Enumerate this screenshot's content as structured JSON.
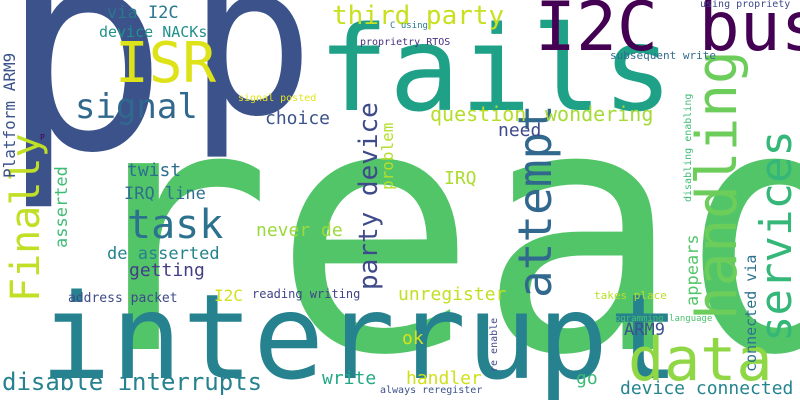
{
  "words": [
    {
      "text": "read",
      "color": "#53c569"
    },
    {
      "text": "interrupt",
      "color": "#26828e"
    },
    {
      "text": "p",
      "color": "#3b528b"
    },
    {
      "text": "p",
      "color": "#3b528b"
    },
    {
      "text": "fails",
      "color": "#1fa187"
    },
    {
      "text": "I2C bus",
      "color": "#440154"
    },
    {
      "text": "ISR",
      "color": "#dde318"
    },
    {
      "text": "data",
      "color": "#8fd744"
    },
    {
      "text": "handling",
      "color": "#6ccd5a"
    },
    {
      "text": "services",
      "color": "#35b779"
    },
    {
      "text": "signal",
      "color": "#31688e"
    },
    {
      "text": "task",
      "color": "#2c728e"
    },
    {
      "text": "attempt",
      "color": "#31688e"
    },
    {
      "text": "third party",
      "color": "#c8e020"
    },
    {
      "text": "Finally",
      "color": "#c0df25"
    },
    {
      "text": "party device",
      "color": "#3e4a89"
    },
    {
      "text": "disable interrupts",
      "color": "#26828e"
    },
    {
      "text": "via I2C",
      "color": "#2a788e"
    },
    {
      "text": "device NACKs",
      "color": "#21918c"
    },
    {
      "text": "question",
      "color": "#b5de2b"
    },
    {
      "text": "wondering",
      "color": "#a5db36"
    },
    {
      "text": "need",
      "color": "#3e4a89"
    },
    {
      "text": "choice",
      "color": "#3b528b"
    },
    {
      "text": "twist",
      "color": "#2d708e"
    },
    {
      "text": "IRQ line",
      "color": "#2d708e"
    },
    {
      "text": "IRQ",
      "color": "#addc30"
    },
    {
      "text": "problem",
      "color": "#b5de2b"
    },
    {
      "text": "never de",
      "color": "#9bd93c"
    },
    {
      "text": "de asserted",
      "color": "#25838e"
    },
    {
      "text": "getting",
      "color": "#433e85"
    },
    {
      "text": "asserted",
      "color": "#3fbc73"
    },
    {
      "text": "Platform ARM9",
      "color": "#3b528b"
    },
    {
      "text": "unregister",
      "color": "#c2df23"
    },
    {
      "text": "address packet",
      "color": "#3e4a89"
    },
    {
      "text": "I2C",
      "color": "#d2e21b"
    },
    {
      "text": "reading writing",
      "color": "#414487"
    },
    {
      "text": "ARM9",
      "color": "#3b528b"
    },
    {
      "text": "appears",
      "color": "#52c569"
    },
    {
      "text": "connected via",
      "color": "#2c728e"
    },
    {
      "text": "handler",
      "color": "#d0e11c"
    },
    {
      "text": "write",
      "color": "#22a884"
    },
    {
      "text": "ok",
      "color": "#d8e219"
    },
    {
      "text": "go",
      "color": "#3aba76"
    },
    {
      "text": "device connected",
      "color": "#25848e"
    },
    {
      "text": "takes place",
      "color": "#b8de29"
    },
    {
      "text": "subsequent write",
      "color": "#2f6c8e"
    },
    {
      "text": "proprietry RTOS",
      "color": "#46317e"
    },
    {
      "text": "using propriety",
      "color": "#3e4989"
    },
    {
      "text": "C using",
      "color": "#2a7b8e"
    },
    {
      "text": "signal posted",
      "color": "#e5e419"
    },
    {
      "text": "disabling enabling",
      "color": "#3dbc74"
    },
    {
      "text": "Programming language",
      "color": "#4ac16d"
    },
    {
      "text": "re enable",
      "color": "#3e4a89"
    },
    {
      "text": "always reregister",
      "color": "#3b528b"
    },
    {
      "text": "P",
      "color": "#440154"
    }
  ]
}
